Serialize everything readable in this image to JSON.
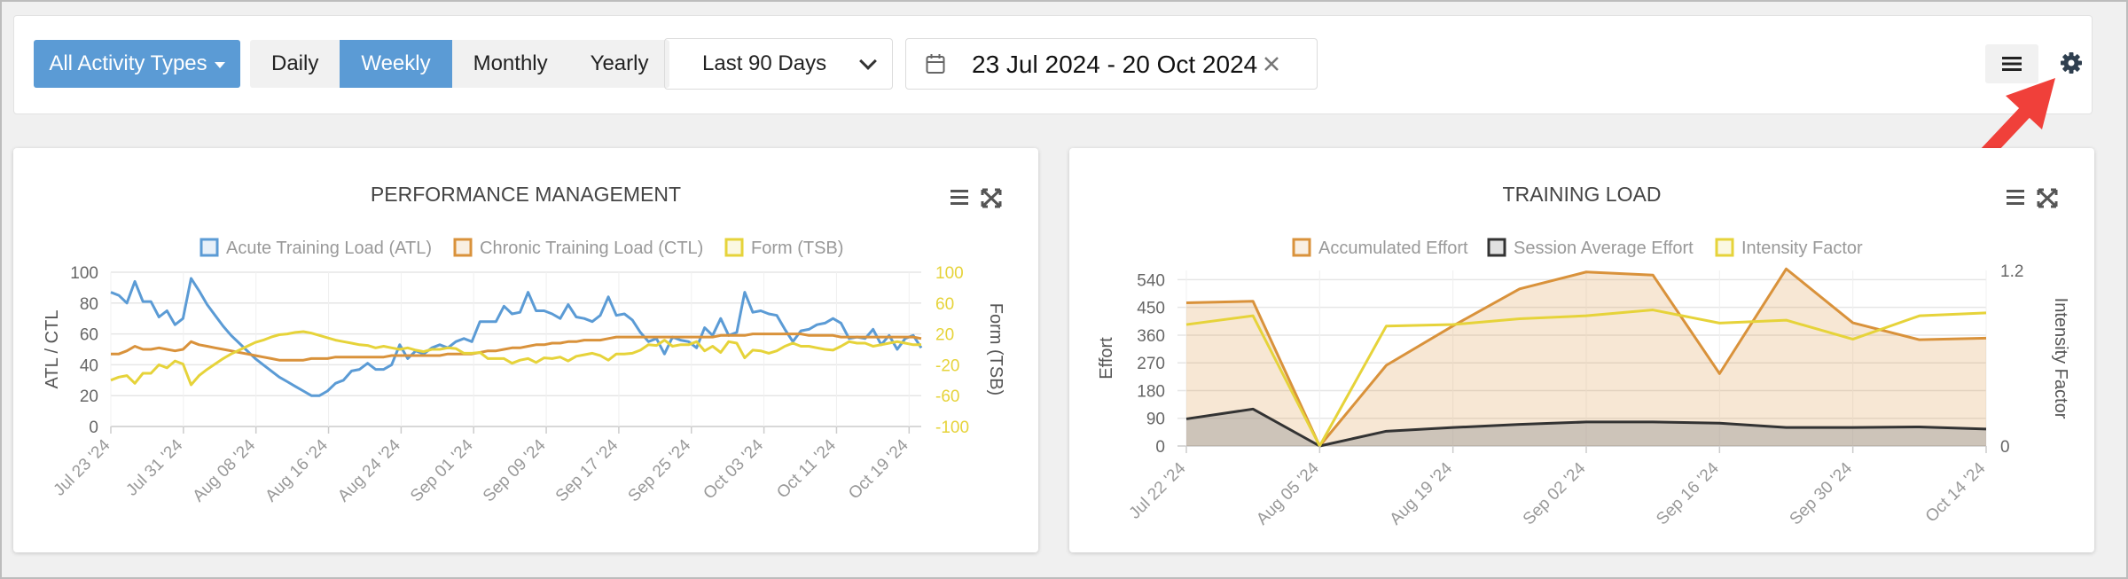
{
  "toolbar": {
    "activity_filter": "All Activity Types",
    "periods": [
      "Daily",
      "Weekly",
      "Monthly",
      "Yearly"
    ],
    "active_period": "Weekly",
    "range_select": "Last 90 Days",
    "date_range": "23 Jul 2024 - 20 Oct 2024",
    "icons": [
      "calendar-icon",
      "clear-icon",
      "menu-icon",
      "gear-icon"
    ]
  },
  "colors": {
    "accent": "#5b9bd5",
    "atl": "#5b9bd5",
    "ctl": "#d9923b",
    "tsb": "#e6d33a",
    "effort": "#d9923b",
    "session": "#333333",
    "intensity": "#e6d33a",
    "annotation_arrow": "#f0403a"
  },
  "chart_data": [
    {
      "type": "line",
      "title": "PERFORMANCE MANAGEMENT",
      "legend": [
        "Acute Training Load (ATL)",
        "Chronic Training Load (CTL)",
        "Form (TSB)"
      ],
      "legend_position": "top-center",
      "ylabel": "ATL / CTL",
      "ylabel_right": "Form (TSB)",
      "ylim": [
        0,
        100
      ],
      "ylim_right": [
        -100,
        100
      ],
      "yticks": [
        "0",
        "20",
        "40",
        "60",
        "80",
        "100"
      ],
      "yticks_right": [
        "-100",
        "-60",
        "-20",
        "20",
        "60",
        "100"
      ],
      "xticks": [
        "Jul 23 '24",
        "Jul 31 '24",
        "Aug 08 '24",
        "Aug 16 '24",
        "Aug 24 '24",
        "Sep 01 '24",
        "Sep 09 '24",
        "Sep 17 '24",
        "Sep 25 '24",
        "Oct 03 '24",
        "Oct 11 '24",
        "Oct 19 '24"
      ],
      "grid": true,
      "series": [
        {
          "name": "Acute Training Load (ATL)",
          "axis": "left",
          "values": [
            87,
            85,
            80,
            94,
            81,
            81,
            71,
            75,
            66,
            70,
            96,
            88,
            79,
            72,
            65,
            59,
            54,
            49,
            44,
            40,
            36,
            32,
            29,
            26,
            23,
            20,
            20,
            23,
            28,
            30,
            36,
            37,
            41,
            37,
            37,
            40,
            53,
            44,
            49,
            47,
            51,
            53,
            51,
            55,
            57,
            55,
            68,
            68,
            68,
            78,
            73,
            74,
            87,
            75,
            75,
            73,
            70,
            79,
            71,
            70,
            68,
            72,
            84,
            72,
            73,
            69,
            61,
            55,
            57,
            47,
            58,
            56,
            55,
            51,
            64,
            59,
            70,
            59,
            61,
            87,
            74,
            75,
            73,
            72,
            63,
            55,
            62,
            63,
            66,
            67,
            70,
            67,
            57,
            58,
            57,
            63,
            53,
            59,
            50,
            57,
            59,
            51
          ]
        },
        {
          "name": "Chronic Training Load (CTL)",
          "axis": "left",
          "values": [
            47,
            47,
            49,
            52,
            50,
            50,
            51,
            50,
            49,
            50,
            55,
            53,
            52,
            51,
            50,
            49,
            48,
            47,
            46,
            45,
            44,
            43,
            43,
            43,
            43,
            44,
            44,
            44,
            45,
            45,
            45,
            45,
            45,
            45,
            45,
            46,
            46,
            46,
            46,
            46,
            46,
            46,
            47,
            47,
            47,
            47,
            48,
            49,
            49,
            50,
            51,
            51,
            52,
            53,
            53,
            54,
            54,
            55,
            55,
            56,
            56,
            56,
            57,
            58,
            58,
            58,
            58,
            58,
            58,
            58,
            58,
            58,
            58,
            58,
            58,
            58,
            59,
            59,
            59,
            59,
            60,
            60,
            60,
            60,
            60,
            60,
            60,
            59,
            59,
            59,
            59,
            58,
            58,
            58,
            58,
            58,
            58,
            58,
            58,
            58,
            58,
            57
          ]
        },
        {
          "name": "Form (TSB)",
          "axis": "right",
          "values": [
            -40,
            -36,
            -34,
            -44,
            -31,
            -31,
            -20,
            -24,
            -15,
            -19,
            -46,
            -34,
            -26,
            -19,
            -12,
            -6,
            -1,
            4,
            9,
            12,
            16,
            19,
            20,
            22,
            23,
            21,
            18,
            15,
            12,
            10,
            8,
            6,
            5,
            2,
            4,
            2,
            0,
            2,
            -1,
            -3,
            0,
            0,
            2,
            1,
            -5,
            -5,
            -4,
            -12,
            -12,
            -12,
            -18,
            -14,
            -12,
            -17,
            -11,
            -12,
            -10,
            -15,
            -9,
            -7,
            -5,
            -8,
            -14,
            -6,
            -6,
            -5,
            -1,
            6,
            5,
            12,
            4,
            6,
            6,
            10,
            -2,
            4,
            -4,
            10,
            8,
            -11,
            -1,
            -2,
            -5,
            -2,
            4,
            8,
            4,
            4,
            2,
            0,
            -1,
            4,
            10,
            8,
            8,
            4,
            6,
            8,
            10,
            8,
            6,
            6
          ]
        }
      ]
    },
    {
      "type": "area",
      "title": "TRAINING LOAD",
      "legend": [
        "Accumulated Effort",
        "Session Average Effort",
        "Intensity Factor"
      ],
      "legend_position": "top-center",
      "ylabel": "Effort",
      "ylabel_right": "Intensity Factor",
      "ylim": [
        0,
        570
      ],
      "ylim_right": [
        0,
        1.2
      ],
      "yticks": [
        "0",
        "90",
        "180",
        "270",
        "360",
        "450",
        "540"
      ],
      "yticks_right": [
        "0",
        "1.2"
      ],
      "xticks": [
        "Jul 22 '24",
        "Aug 05 '24",
        "Aug 19 '24",
        "Sep 02 '24",
        "Sep 16 '24",
        "Sep 30 '24",
        "Oct 14 '24"
      ],
      "grid": true,
      "x": [
        "Jul 22 '24",
        "Jul 29 '24",
        "Aug 05 '24",
        "Aug 12 '24",
        "Aug 19 '24",
        "Aug 26 '24",
        "Sep 02 '24",
        "Sep 09 '24",
        "Sep 16 '24",
        "Sep 23 '24",
        "Sep 30 '24",
        "Oct 07 '24",
        "Oct 14 '24"
      ],
      "series": [
        {
          "name": "Accumulated Effort",
          "axis": "left",
          "values": [
            465,
            470,
            0,
            262,
            390,
            510,
            565,
            555,
            235,
            575,
            400,
            345,
            350
          ]
        },
        {
          "name": "Session Average Effort",
          "axis": "left",
          "values": [
            88,
            120,
            0,
            48,
            60,
            70,
            78,
            78,
            74,
            60,
            60,
            62,
            55
          ]
        },
        {
          "name": "Intensity Factor",
          "axis": "right",
          "values": [
            0.83,
            0.89,
            0.0,
            0.82,
            0.83,
            0.87,
            0.89,
            0.93,
            0.84,
            0.86,
            0.73,
            0.89,
            0.91
          ]
        }
      ]
    }
  ]
}
